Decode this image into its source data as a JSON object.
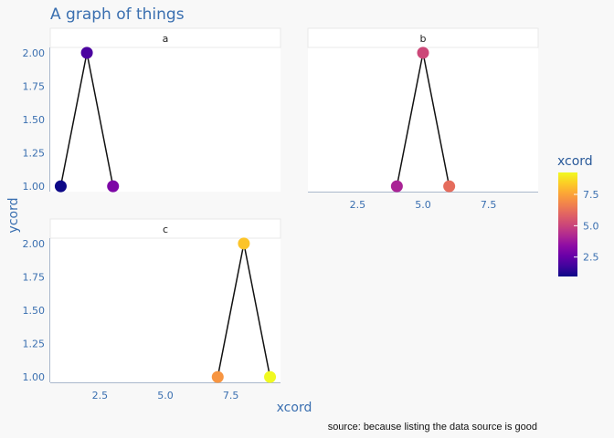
{
  "chart_data": {
    "type": "line",
    "title": "A graph of things",
    "xlabel": "xcord",
    "ylabel": "ycord",
    "caption": "source: because listing the data source is good",
    "xlim": [
      0.6,
      9.4
    ],
    "ylim": [
      0.96,
      2.04
    ],
    "x_ticks": [
      "2.5",
      "5.0",
      "7.5"
    ],
    "y_ticks": [
      "1.00",
      "1.25",
      "1.50",
      "1.75",
      "2.00"
    ],
    "facets": [
      {
        "name": "a",
        "x": [
          1,
          2,
          3
        ],
        "y": [
          1,
          2,
          1
        ]
      },
      {
        "name": "b",
        "x": [
          4,
          5,
          6
        ],
        "y": [
          1,
          2,
          1
        ]
      },
      {
        "name": "c",
        "x": [
          7,
          8,
          9
        ],
        "y": [
          1,
          2,
          1
        ]
      }
    ],
    "legend": {
      "title": "xcord",
      "ticks": [
        "2.5",
        "5.0",
        "7.5"
      ],
      "range": [
        1,
        9
      ],
      "placement": "right"
    },
    "colors": [
      "#0d0887",
      "#41049d",
      "#6a00a8",
      "#8f0da4",
      "#b12a90",
      "#cc4778",
      "#e16462",
      "#f2844b",
      "#fca636",
      "#fcce25",
      "#f0f921"
    ],
    "line_color": "#111111",
    "grid": false
  }
}
